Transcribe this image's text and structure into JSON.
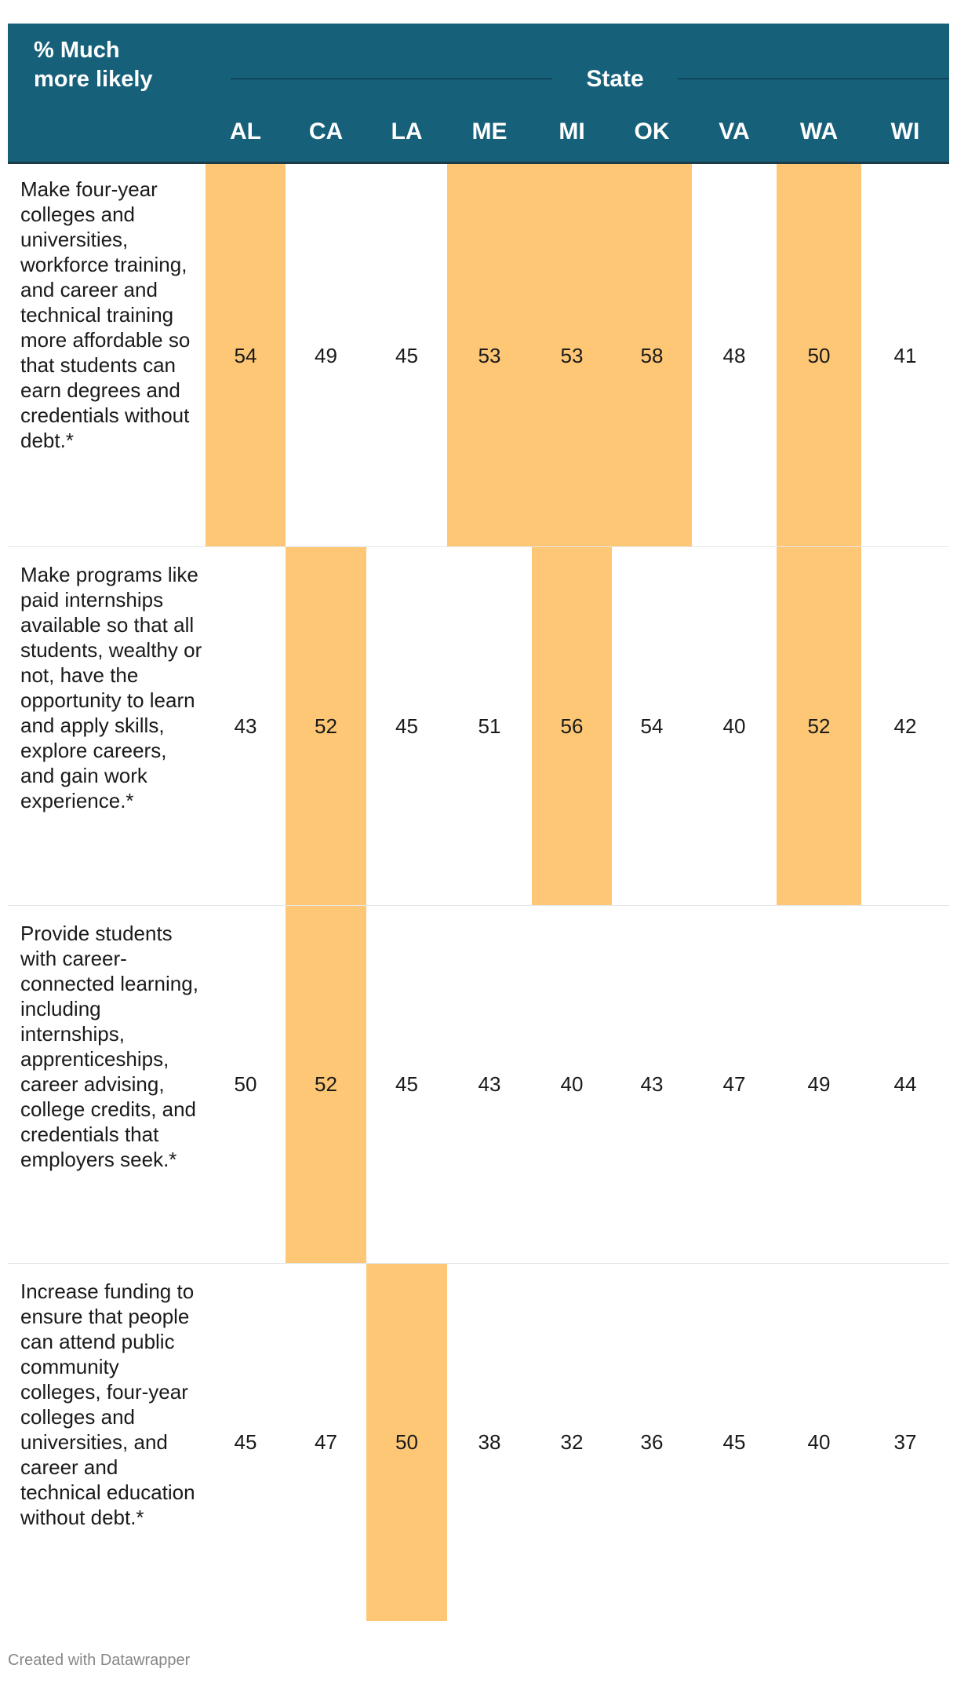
{
  "chart_data": {
    "type": "table",
    "corner_label": "% Much\nmore likely",
    "group_label": "State",
    "columns": [
      "AL",
      "CA",
      "LA",
      "ME",
      "MI",
      "OK",
      "VA",
      "WA",
      "WI"
    ],
    "rows": [
      {
        "label": "Make four-year colleges and universities, workforce training, and career and technical training more affordable so that students can earn degrees and credentials without debt.*",
        "values": [
          54,
          49,
          45,
          53,
          53,
          58,
          48,
          50,
          41
        ],
        "highlighted": [
          true,
          false,
          false,
          true,
          true,
          true,
          false,
          true,
          false
        ]
      },
      {
        "label": "Make programs like paid internships available so that all students, wealthy or not, have the opportunity to learn and apply skills, explore careers, and gain work experience.*",
        "values": [
          43,
          52,
          45,
          51,
          56,
          54,
          40,
          52,
          42
        ],
        "highlighted": [
          false,
          true,
          false,
          false,
          true,
          false,
          false,
          true,
          false
        ]
      },
      {
        "label": "Provide students with career-connected learning, including internships, apprenticeships, career advising, college credits, and credentials that employers seek.*",
        "values": [
          50,
          52,
          45,
          43,
          40,
          43,
          47,
          49,
          44
        ],
        "highlighted": [
          false,
          true,
          false,
          false,
          false,
          false,
          false,
          false,
          false
        ]
      },
      {
        "label": "Increase funding to ensure that people can attend public community colleges, four-year colleges and universities, and career and technical education without debt.*",
        "values": [
          45,
          47,
          50,
          38,
          32,
          36,
          45,
          40,
          37
        ],
        "highlighted": [
          false,
          false,
          true,
          false,
          false,
          false,
          false,
          false,
          false
        ]
      }
    ],
    "highlight_color": "#fdc775",
    "header_color": "#16607a"
  },
  "footer": {
    "credit": "Created with Datawrapper"
  }
}
